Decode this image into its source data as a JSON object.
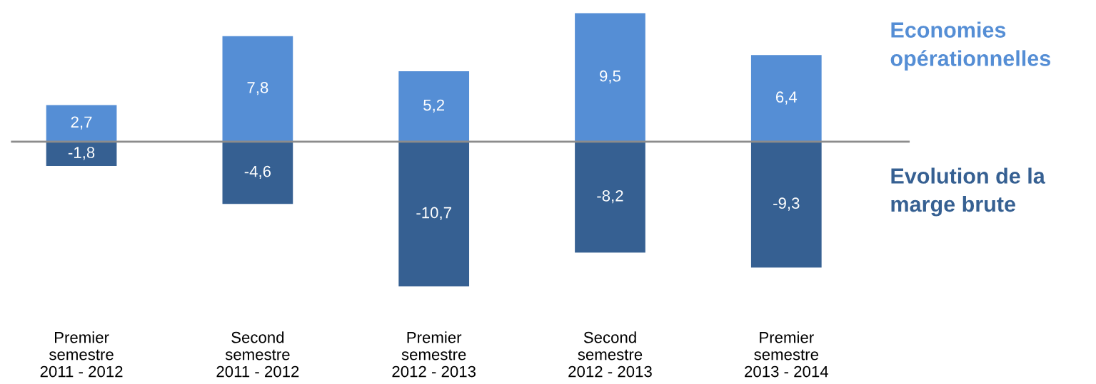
{
  "chart_data": {
    "type": "bar",
    "stacked": true,
    "legend": "right",
    "categories": [
      "Premier\nsemestre\n2011 - 2012",
      "Second\nsemestre\n2011 - 2012",
      "Premier\nsemestre\n2012 - 2013",
      "Second\nsemestre\n2012 - 2013",
      "Premier\nsemestre\n2013 - 2014"
    ],
    "series": [
      {
        "name": "Economies opérationnelles",
        "color": "#558ed5",
        "values": [
          2.7,
          7.8,
          5.2,
          9.5,
          6.4
        ],
        "value_labels": [
          "2,7",
          "7,8",
          "5,2",
          "9,5",
          "6,4"
        ]
      },
      {
        "name": "Evolution de la marge brute",
        "color": "#366092",
        "values": [
          -1.8,
          -4.6,
          -10.7,
          -8.2,
          -9.3
        ],
        "value_labels": [
          "-1,8",
          "-4,6",
          "-10,7",
          "-8,2",
          "-9,3"
        ]
      }
    ]
  }
}
